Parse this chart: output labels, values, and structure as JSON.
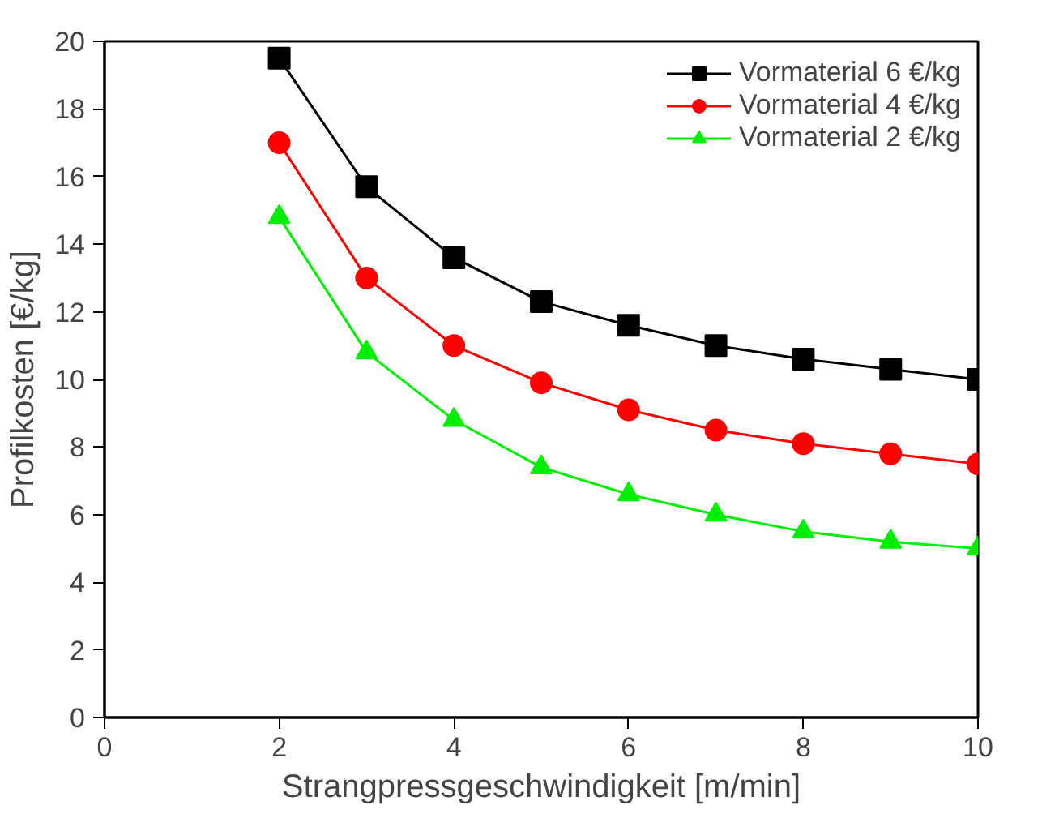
{
  "chart_data": {
    "type": "line",
    "xlabel": "Strangpressgeschwindigkeit [m/min]",
    "ylabel": "Profilkosten [€/kg]",
    "x": [
      2,
      3,
      4,
      5,
      6,
      7,
      8,
      9,
      10
    ],
    "series": [
      {
        "name": "Vormaterial 6 €/kg",
        "color": "#000000",
        "marker": "square",
        "values": [
          19.5,
          15.7,
          13.6,
          12.3,
          11.6,
          11.0,
          10.6,
          10.3,
          10.0
        ]
      },
      {
        "name": "Vormaterial 4 €/kg",
        "color": "#ff0000",
        "marker": "circle",
        "values": [
          17.0,
          13.0,
          11.0,
          9.9,
          9.1,
          8.5,
          8.1,
          7.8,
          7.5
        ]
      },
      {
        "name": "Vormaterial 2 €/kg",
        "color": "#00ee00",
        "marker": "triangle",
        "values": [
          14.8,
          10.8,
          8.8,
          7.4,
          6.6,
          6.0,
          5.5,
          5.2,
          5.0
        ]
      }
    ],
    "xlim": [
      0,
      10
    ],
    "ylim": [
      0,
      20
    ],
    "xticks": [
      0,
      2,
      4,
      6,
      8,
      10
    ],
    "yticks": [
      0,
      2,
      4,
      6,
      8,
      10,
      12,
      14,
      16,
      18,
      20
    ],
    "grid": false,
    "legend": "top right",
    "line_style": "solid"
  }
}
